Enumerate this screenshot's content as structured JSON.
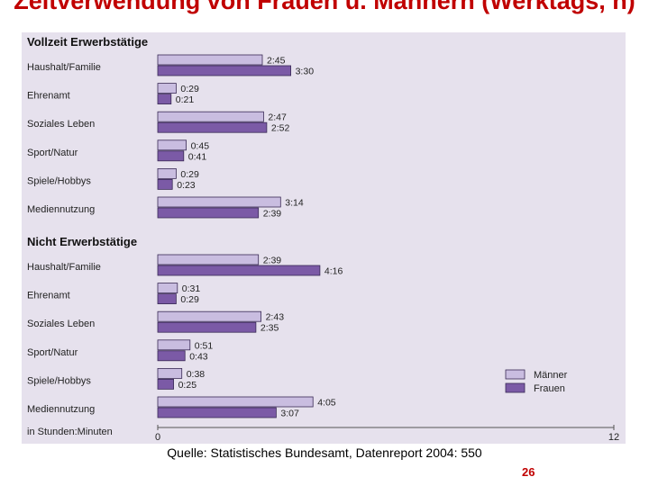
{
  "slide": {
    "title": "Zeitverwendung von Frauen u. Männern (Werktags, h)",
    "source": "Quelle: Statistisches Bundesamt, Datenreport 2004: 550",
    "page_number": "26"
  },
  "chart_data": {
    "type": "bar",
    "orientation": "horizontal",
    "unit_note": "in Stunden:Minuten",
    "xlim": [
      0,
      12
    ],
    "x_tick_labels": [
      "0",
      "12"
    ],
    "colors": {
      "Männer": "#c9bde0",
      "Frauen": "#7b5aa6"
    },
    "legend": {
      "position": "bottom-right",
      "entries": [
        "Männer",
        "Frauen"
      ]
    },
    "groups": [
      {
        "name": "Vollzeit Erwerbstätige",
        "categories": [
          "Haushalt/Familie",
          "Ehrenamt",
          "Soziales Leben",
          "Sport/Natur",
          "Spiele/Hobbys",
          "Mediennutzung"
        ],
        "series": [
          {
            "name": "Männer",
            "values": [
              2.75,
              0.4833,
              2.7833,
              0.75,
              0.4833,
              3.2333
            ],
            "labels": [
              "2:45",
              "0:29",
              "2:47",
              "0:45",
              "0:29",
              "3:14"
            ]
          },
          {
            "name": "Frauen",
            "values": [
              3.5,
              0.35,
              2.8667,
              0.6833,
              0.3833,
              2.65
            ],
            "labels": [
              "3:30",
              "0:21",
              "2:52",
              "0:41",
              "0:23",
              "2:39"
            ]
          }
        ]
      },
      {
        "name": "Nicht Erwerbstätige",
        "categories": [
          "Haushalt/Familie",
          "Ehrenamt",
          "Soziales Leben",
          "Sport/Natur",
          "Spiele/Hobbys",
          "Mediennutzung"
        ],
        "series": [
          {
            "name": "Männer",
            "values": [
              2.65,
              0.5167,
              2.7167,
              0.85,
              0.6333,
              4.0833
            ],
            "labels": [
              "2:39",
              "0:31",
              "2:43",
              "0:51",
              "0:38",
              "4:05"
            ]
          },
          {
            "name": "Frauen",
            "values": [
              4.2667,
              0.4833,
              2.5833,
              0.7167,
              0.4167,
              3.1167
            ],
            "labels": [
              "4:16",
              "0:29",
              "2:35",
              "0:43",
              "0:25",
              "3:07"
            ]
          }
        ]
      }
    ]
  }
}
